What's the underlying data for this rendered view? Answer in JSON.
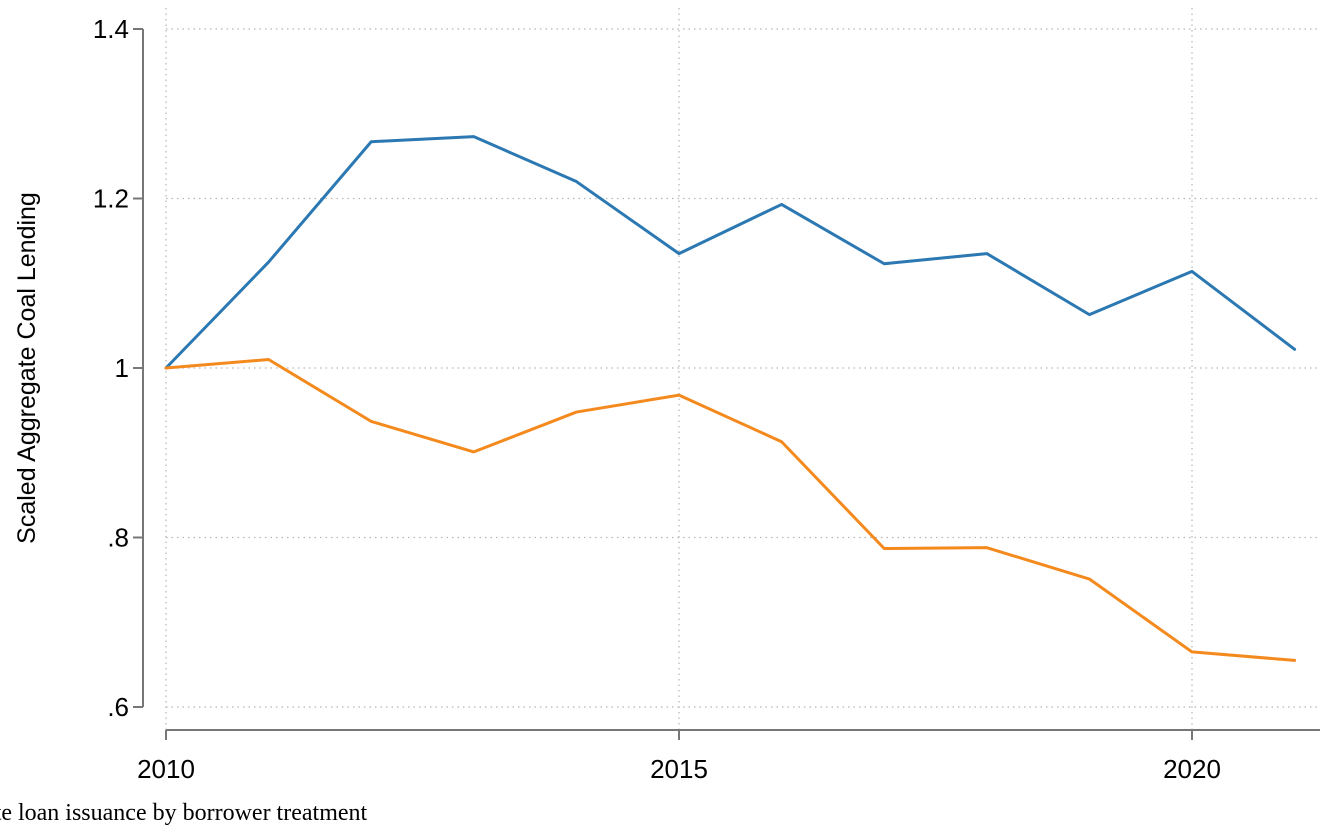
{
  "chart_data": {
    "type": "line",
    "ylabel": "Scaled Aggregate Coal Lending",
    "xlabel": "",
    "xlim": [
      2010,
      2021
    ],
    "ylim": [
      0.6,
      1.4
    ],
    "x_ticks": [
      {
        "value": 2010,
        "label": "2010"
      },
      {
        "value": 2015,
        "label": "2015"
      },
      {
        "value": 2020,
        "label": "2020"
      }
    ],
    "y_ticks": [
      {
        "value": 0.6,
        "label": ".6"
      },
      {
        "value": 0.8,
        "label": ".8"
      },
      {
        "value": 1.0,
        "label": "1"
      },
      {
        "value": 1.2,
        "label": "1.2"
      },
      {
        "value": 1.4,
        "label": "1.4"
      }
    ],
    "grid": "dotted",
    "x": [
      2010,
      2011,
      2012,
      2013,
      2014,
      2015,
      2016,
      2017,
      2018,
      2019,
      2020,
      2021
    ],
    "series": [
      {
        "color": "#2b78b2",
        "values": [
          1.0,
          1.125,
          1.267,
          1.273,
          1.22,
          1.135,
          1.193,
          1.123,
          1.135,
          1.063,
          1.114,
          1.022
        ]
      },
      {
        "color": "#f48a1e",
        "values": [
          1.0,
          1.01,
          0.937,
          0.901,
          0.948,
          0.968,
          0.913,
          0.787,
          0.788,
          0.751,
          0.665,
          0.655
        ]
      }
    ]
  },
  "caption": "gate loan issuance by borrower treatment"
}
